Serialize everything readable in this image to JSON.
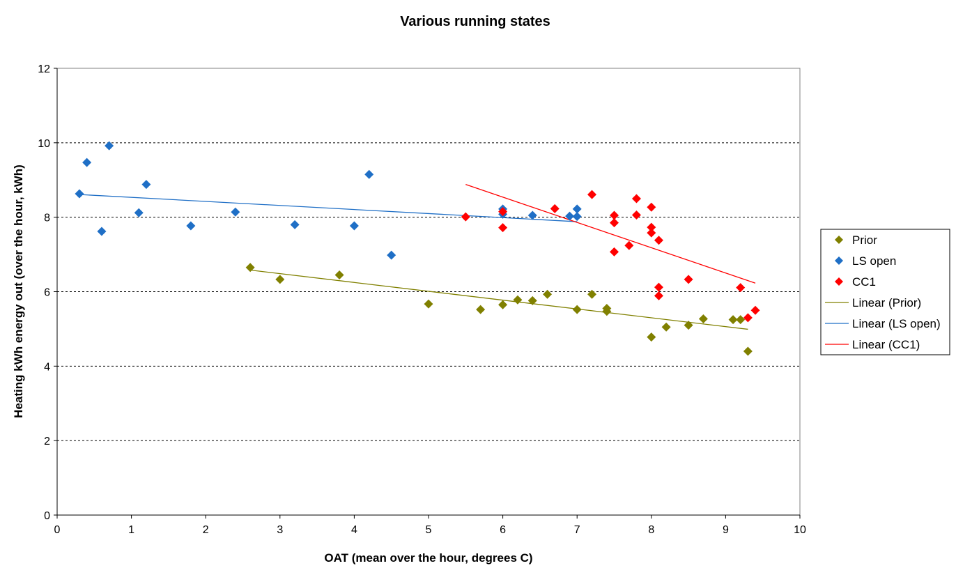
{
  "chart_data": {
    "type": "scatter",
    "title": "Various running states",
    "xlabel": "OAT (mean over the hour, degrees C)",
    "ylabel": "Heating kWh energy out (over the hour, kWh)",
    "xlim": [
      0,
      10
    ],
    "ylim": [
      0,
      12
    ],
    "xticks": [
      "0",
      "1",
      "2",
      "3",
      "4",
      "5",
      "6",
      "7",
      "8",
      "9",
      "10"
    ],
    "yticks": [
      "0",
      "2",
      "4",
      "6",
      "8",
      "10",
      "12"
    ],
    "grid": "horizontal dashed",
    "legend_position": "right",
    "series": [
      {
        "name": "Prior",
        "color": "#808000",
        "marker": "diamond",
        "points": [
          [
            2.6,
            6.65
          ],
          [
            3.0,
            6.33
          ],
          [
            3.8,
            6.45
          ],
          [
            5.0,
            5.67
          ],
          [
            5.7,
            5.52
          ],
          [
            6.0,
            5.65
          ],
          [
            6.2,
            5.78
          ],
          [
            6.4,
            5.76
          ],
          [
            6.6,
            5.93
          ],
          [
            7.0,
            5.52
          ],
          [
            7.2,
            5.93
          ],
          [
            7.4,
            5.55
          ],
          [
            7.4,
            5.47
          ],
          [
            8.0,
            4.78
          ],
          [
            8.2,
            5.05
          ],
          [
            8.5,
            5.1
          ],
          [
            8.7,
            5.27
          ],
          [
            9.1,
            5.25
          ],
          [
            9.2,
            5.25
          ],
          [
            9.3,
            4.4
          ]
        ]
      },
      {
        "name": "LS open",
        "color": "#1f6fc6",
        "marker": "diamond",
        "points": [
          [
            0.3,
            8.63
          ],
          [
            0.4,
            9.47
          ],
          [
            0.6,
            7.62
          ],
          [
            0.7,
            9.92
          ],
          [
            1.1,
            8.12
          ],
          [
            1.2,
            8.88
          ],
          [
            1.8,
            7.77
          ],
          [
            2.4,
            8.14
          ],
          [
            3.2,
            7.8
          ],
          [
            4.0,
            7.77
          ],
          [
            4.2,
            9.15
          ],
          [
            4.5,
            6.98
          ],
          [
            6.0,
            8.22
          ],
          [
            6.0,
            8.08
          ],
          [
            6.4,
            8.05
          ],
          [
            6.9,
            8.03
          ],
          [
            7.0,
            8.22
          ],
          [
            7.0,
            8.02
          ]
        ]
      },
      {
        "name": "CC1",
        "color": "#ff0000",
        "marker": "diamond",
        "points": [
          [
            5.5,
            8.01
          ],
          [
            6.0,
            8.15
          ],
          [
            6.0,
            7.72
          ],
          [
            6.7,
            8.23
          ],
          [
            7.2,
            8.61
          ],
          [
            7.5,
            8.05
          ],
          [
            7.5,
            7.85
          ],
          [
            7.5,
            7.07
          ],
          [
            7.7,
            7.24
          ],
          [
            7.8,
            8.5
          ],
          [
            7.8,
            8.06
          ],
          [
            8.0,
            8.27
          ],
          [
            8.0,
            7.73
          ],
          [
            8.0,
            7.58
          ],
          [
            8.1,
            7.38
          ],
          [
            8.1,
            6.12
          ],
          [
            8.1,
            5.89
          ],
          [
            8.5,
            6.33
          ],
          [
            9.2,
            6.11
          ],
          [
            9.3,
            5.3
          ],
          [
            9.4,
            5.5
          ]
        ]
      }
    ],
    "trendlines": [
      {
        "name": "Linear (Prior)",
        "color": "#808000",
        "x": [
          2.6,
          9.3
        ],
        "y": [
          6.58,
          4.99
        ]
      },
      {
        "name": "Linear (LS open)",
        "color": "#1f6fc6",
        "x": [
          0.3,
          7.0
        ],
        "y": [
          8.61,
          7.88
        ]
      },
      {
        "name": "Linear (CC1)",
        "color": "#ff0000",
        "x": [
          5.5,
          9.4
        ],
        "y": [
          8.88,
          6.23
        ]
      }
    ]
  }
}
